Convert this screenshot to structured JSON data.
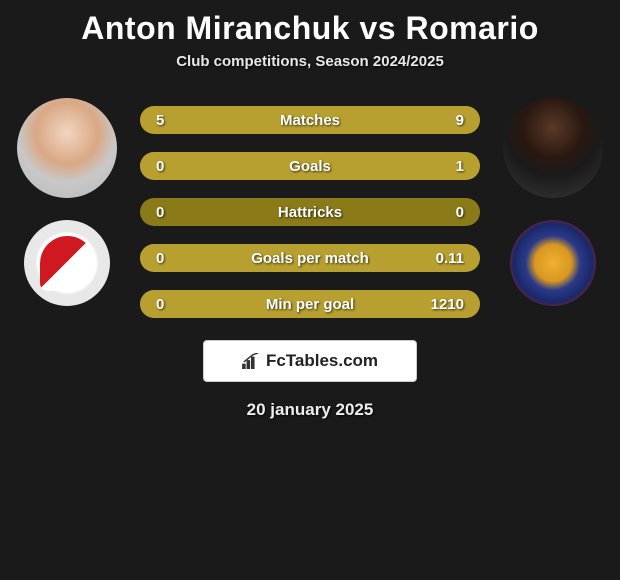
{
  "title": "Anton Miranchuk vs Romario",
  "subtitle": "Club competitions, Season 2024/2025",
  "date": "20 january 2025",
  "brand": "FcTables.com",
  "colors": {
    "background": "#1a1a1a",
    "bar_bg": "#8a7a18",
    "bar_fill": "#b8a030",
    "text": "#ffffff"
  },
  "bars": [
    {
      "label": "Matches",
      "left": "5",
      "right": "9",
      "left_pct": 35.7,
      "right_pct": 64.3
    },
    {
      "label": "Goals",
      "left": "0",
      "right": "1",
      "left_pct": 0,
      "right_pct": 100
    },
    {
      "label": "Hattricks",
      "left": "0",
      "right": "0",
      "left_pct": 0,
      "right_pct": 0
    },
    {
      "label": "Goals per match",
      "left": "0",
      "right": "0.11",
      "left_pct": 0,
      "right_pct": 100
    },
    {
      "label": "Min per goal",
      "left": "0",
      "right": "1210",
      "left_pct": 0,
      "right_pct": 100
    }
  ]
}
